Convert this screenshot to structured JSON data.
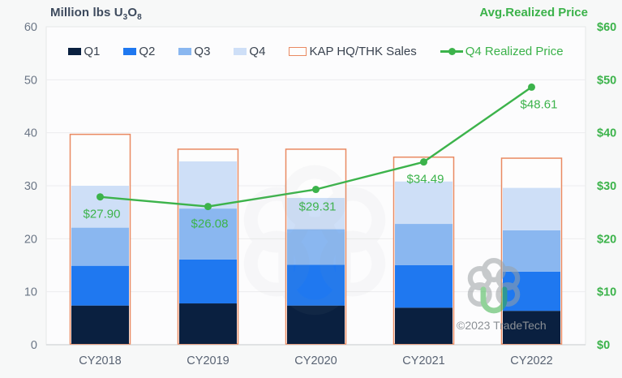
{
  "header": {
    "left_title": {
      "prefix": "Million lbs U",
      "sub1": "3",
      "mid": "O",
      "sub2": "8"
    },
    "right_title": "Avg.Realized Price"
  },
  "watermark": {
    "copyright": "©2023 TradeTech"
  },
  "colors": {
    "background": "#f7f8f8",
    "plot_background": "#fcfcfd",
    "grid": "#ededee",
    "plot_border": "#e6e7e8",
    "axis_line": "#d8dadc",
    "left_tick_text": "#6b7686",
    "category_text": "#596373",
    "green": "#3cb34b",
    "orange": "#e98a62",
    "watermark_gray": "#9aa0a4"
  },
  "chart_data": {
    "type": "bar",
    "subtype": "stacked-bar-with-outline-and-line",
    "title": "Million lbs U3O8 / Avg.Realized Price",
    "categories": [
      "CY2018",
      "CY2019",
      "CY2020",
      "CY2021",
      "CY2022"
    ],
    "series": [
      {
        "name": "Q1",
        "type": "bar-stack",
        "color": "#0a2040",
        "values": [
          7.4,
          7.8,
          7.4,
          7.0,
          6.4
        ]
      },
      {
        "name": "Q2",
        "type": "bar-stack",
        "color": "#1f78f0",
        "values": [
          7.5,
          8.3,
          7.7,
          8.0,
          7.4
        ]
      },
      {
        "name": "Q3",
        "type": "bar-stack",
        "color": "#8ab7f0",
        "values": [
          7.2,
          9.6,
          6.7,
          7.8,
          7.8
        ]
      },
      {
        "name": "Q4",
        "type": "bar-stack",
        "color": "#cedff7",
        "values": [
          7.9,
          8.9,
          5.9,
          8.0,
          8.0
        ]
      },
      {
        "name": "KAP HQ/THK Sales",
        "type": "bar-outline",
        "color": "#e98a62",
        "values": [
          39.7,
          36.9,
          36.9,
          35.4,
          35.2
        ]
      },
      {
        "name": "Q4 Realized Price",
        "type": "line",
        "color": "#3cb34b",
        "values": [
          27.9,
          26.08,
          29.31,
          34.49,
          48.61
        ],
        "labels": [
          "$27.90",
          "$26.08",
          "$29.31",
          "$34.49",
          "$48.61"
        ]
      }
    ],
    "left_axis": {
      "min": 0,
      "max": 60,
      "ticks": [
        "0",
        "10",
        "20",
        "30",
        "40",
        "50",
        "60"
      ]
    },
    "right_axis": {
      "min": 0,
      "max": 60,
      "ticks": [
        "$0",
        "$10",
        "$20",
        "$30",
        "$40",
        "$50",
        "$60"
      ]
    },
    "grid": true,
    "legend_position": "top"
  }
}
